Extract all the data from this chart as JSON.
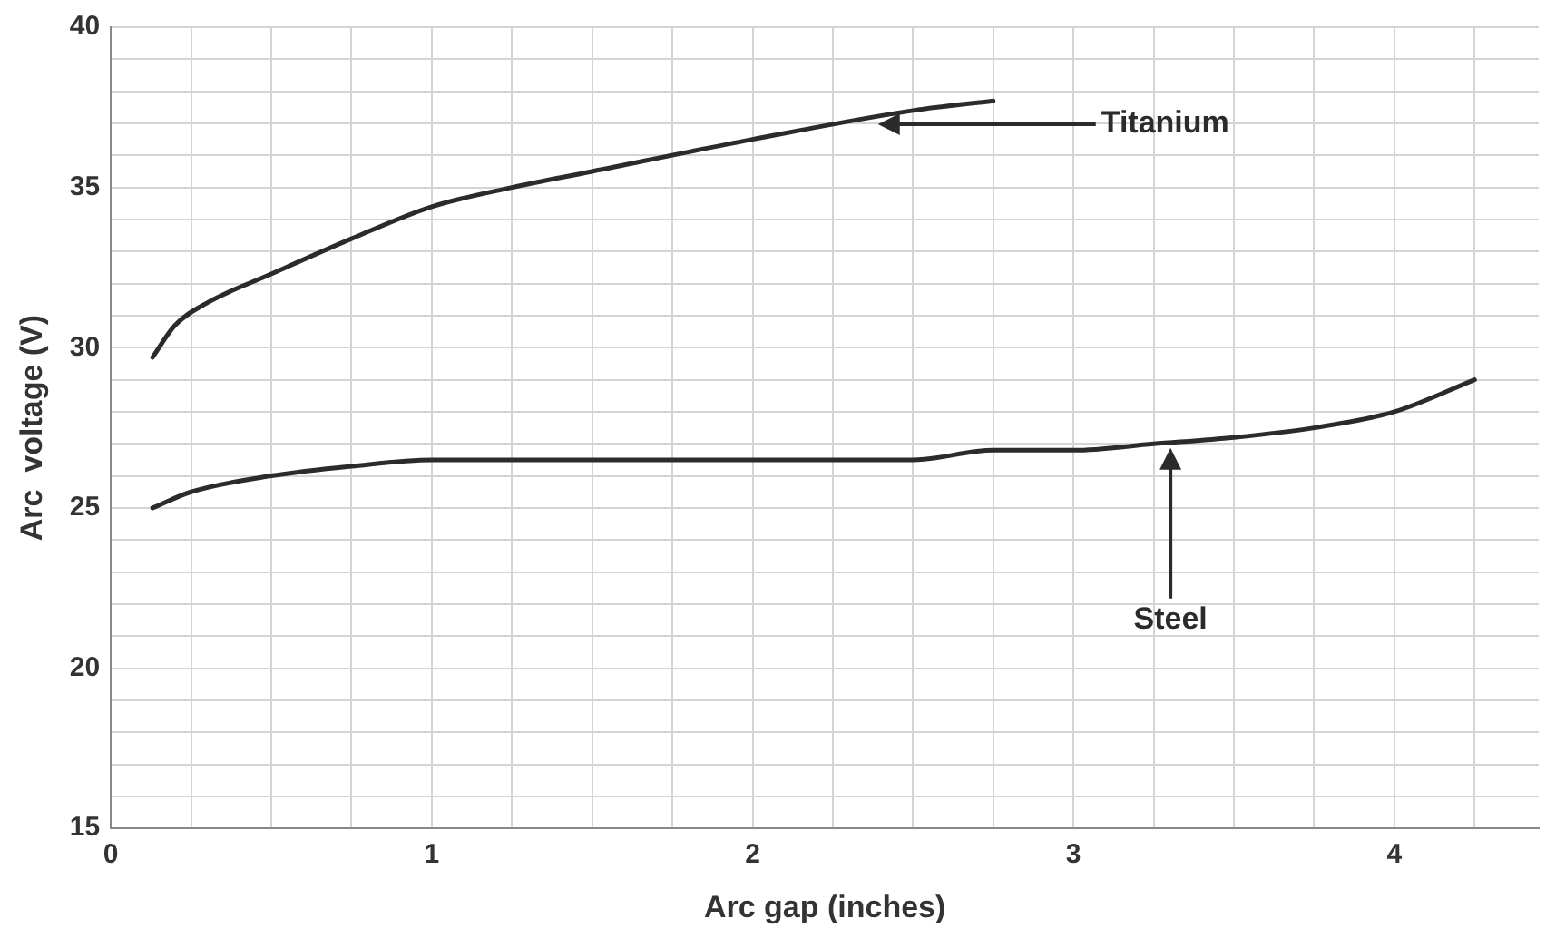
{
  "chart_data": {
    "type": "line",
    "xlabel": "Arc gap (inches)",
    "ylabel": "Arc  voltage (V)",
    "xlim": [
      0,
      4.45
    ],
    "xticks": [
      0,
      {
        "value": 0.25,
        "label": null
      },
      {
        "value": 0.5,
        "label": null
      },
      {
        "value": 0.75,
        "label": null
      },
      1,
      {
        "value": 1.25,
        "label": null
      },
      {
        "value": 1.5,
        "label": null
      },
      {
        "value": 1.75,
        "label": null
      },
      2,
      {
        "value": 2.25,
        "label": null
      },
      {
        "value": 2.5,
        "label": null
      },
      {
        "value": 2.75,
        "label": null
      },
      3,
      {
        "value": 3.25,
        "label": null
      },
      {
        "value": 3.5,
        "label": null
      },
      {
        "value": 3.75,
        "label": null
      },
      4,
      {
        "value": 4.25,
        "label": null
      }
    ],
    "ylim": [
      15,
      40
    ],
    "yticks": [
      15,
      {
        "value": 16,
        "label": null
      },
      {
        "value": 17,
        "label": null
      },
      {
        "value": 18,
        "label": null
      },
      {
        "value": 19,
        "label": null
      },
      20,
      {
        "value": 21,
        "label": null
      },
      {
        "value": 22,
        "label": null
      },
      {
        "value": 23,
        "label": null
      },
      {
        "value": 24,
        "label": null
      },
      25,
      {
        "value": 26,
        "label": null
      },
      {
        "value": 27,
        "label": null
      },
      {
        "value": 28,
        "label": null
      },
      {
        "value": 29,
        "label": null
      },
      30,
      {
        "value": 31,
        "label": null
      },
      {
        "value": 32,
        "label": null
      },
      {
        "value": 33,
        "label": null
      },
      {
        "value": 34,
        "label": null
      },
      35,
      {
        "value": 36,
        "label": null
      },
      {
        "value": 37,
        "label": null
      },
      {
        "value": 38,
        "label": null
      },
      {
        "value": 39,
        "label": null
      },
      40
    ],
    "grid": true,
    "legend": false,
    "marker": "none",
    "line_style": "solid",
    "series": [
      {
        "name": "Titanium",
        "color": "#2b2b2b",
        "x": [
          0.13,
          0.2,
          0.3,
          0.5,
          0.75,
          1,
          1.25,
          1.5,
          2,
          2.5,
          2.75
        ],
        "values": [
          29.7,
          30.7,
          31.4,
          32.3,
          33.4,
          34.4,
          35.0,
          35.5,
          36.5,
          37.4,
          37.7
        ]
      },
      {
        "name": "Steel",
        "color": "#2b2b2b",
        "x": [
          0.13,
          0.25,
          0.5,
          0.75,
          1,
          1.5,
          2,
          2.5,
          2.75,
          3,
          3.25,
          3.5,
          3.75,
          4,
          4.25
        ],
        "values": [
          25.0,
          25.5,
          26.0,
          26.3,
          26.5,
          26.5,
          26.5,
          26.5,
          26.8,
          26.8,
          27.0,
          27.2,
          27.5,
          28.0,
          29.0
        ]
      }
    ]
  }
}
